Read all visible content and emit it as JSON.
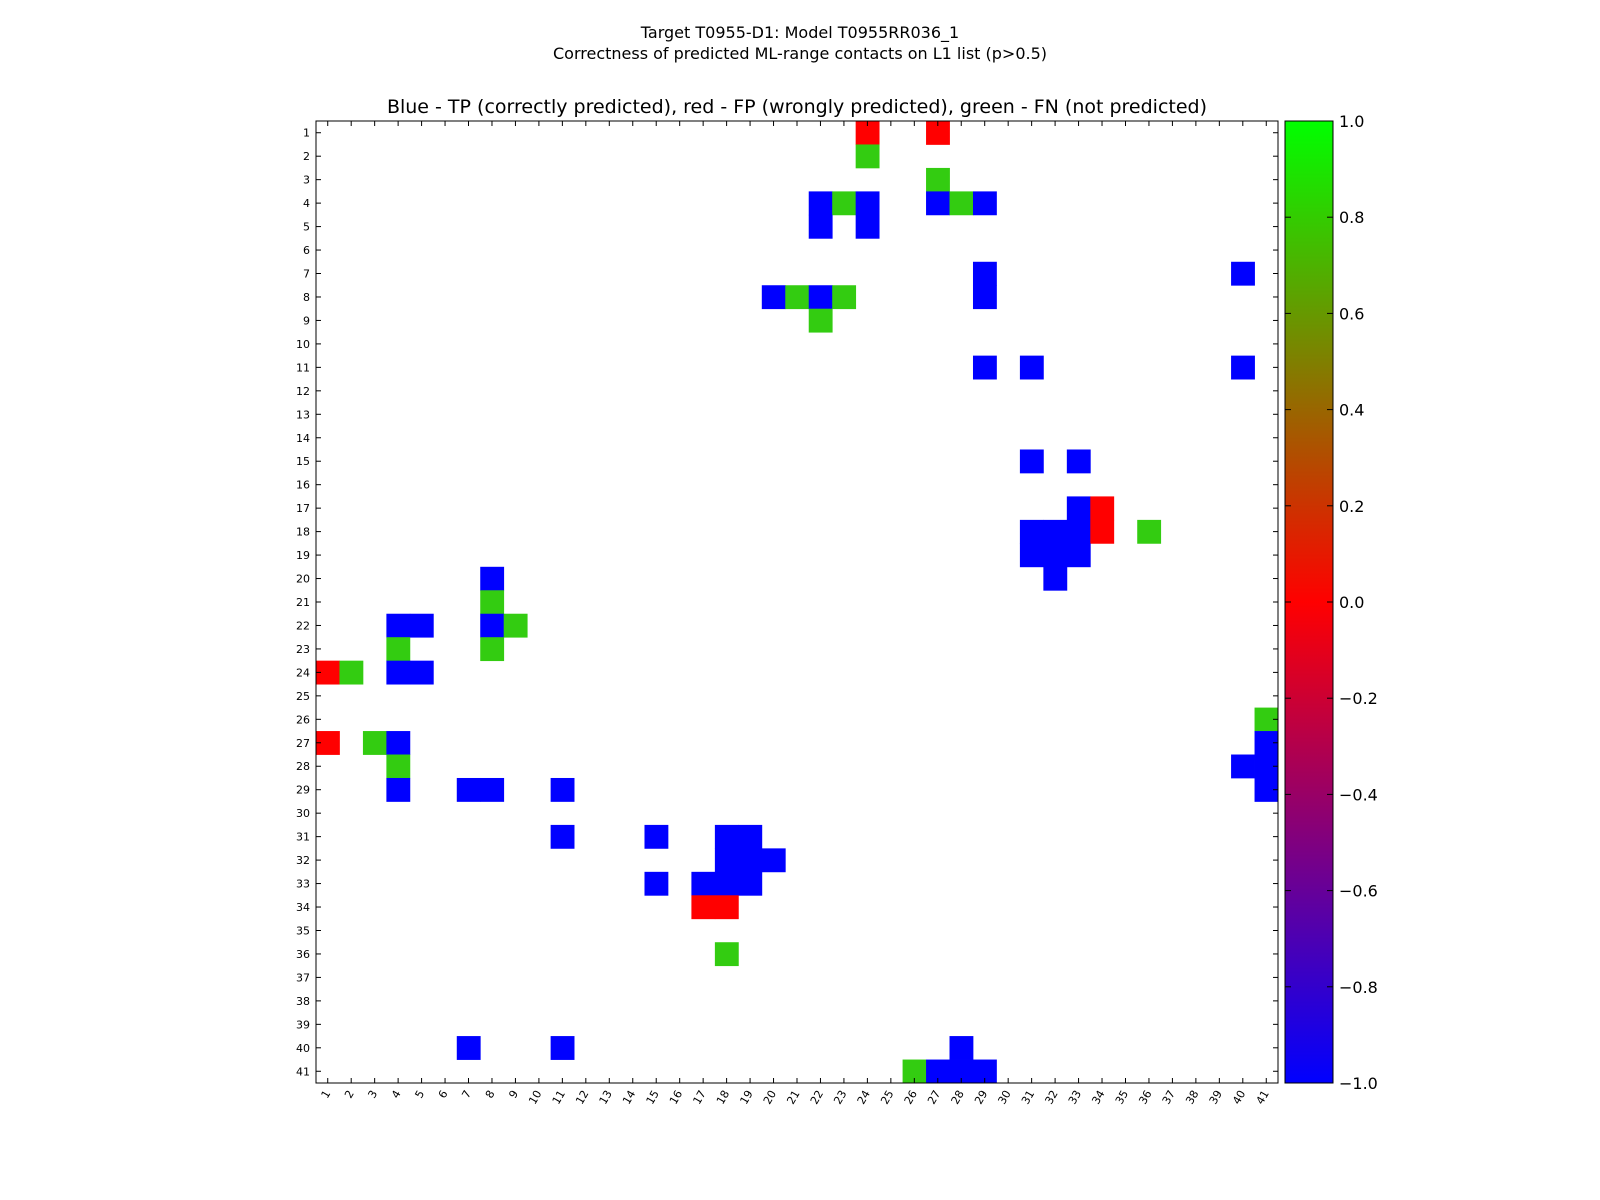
{
  "chart_data": {
    "type": "heatmap",
    "title": "Target T0955-D1: Model T0955RR036_1",
    "subtitle": "Correctness of predicted ML-range contacts on L1 list (p>0.5)",
    "axes_title": "Blue - TP (correctly predicted), red - FP (wrongly predicted), green - FN (not predicted)",
    "n": 41,
    "x_ticks": [
      "1",
      "2",
      "3",
      "4",
      "5",
      "6",
      "7",
      "8",
      "9",
      "10",
      "11",
      "12",
      "13",
      "14",
      "15",
      "16",
      "17",
      "18",
      "19",
      "20",
      "21",
      "22",
      "23",
      "24",
      "25",
      "26",
      "27",
      "28",
      "29",
      "30",
      "31",
      "32",
      "33",
      "34",
      "35",
      "36",
      "37",
      "38",
      "39",
      "40",
      "41"
    ],
    "y_ticks": [
      "1",
      "2",
      "3",
      "4",
      "5",
      "6",
      "7",
      "8",
      "9",
      "10",
      "11",
      "12",
      "13",
      "14",
      "15",
      "16",
      "17",
      "18",
      "19",
      "20",
      "21",
      "22",
      "23",
      "24",
      "25",
      "26",
      "27",
      "28",
      "29",
      "30",
      "31",
      "32",
      "33",
      "34",
      "35",
      "36",
      "37",
      "38",
      "39",
      "40",
      "41"
    ],
    "legend_values": {
      "TP": -1,
      "FP": 0,
      "FN": 1
    },
    "colorbar": {
      "range": [
        -1.0,
        1.0
      ],
      "ticks": [
        "1.0",
        "0.8",
        "0.6",
        "0.4",
        "0.2",
        "0.0",
        "−0.2",
        "−0.4",
        "−0.6",
        "−0.8",
        "−1.0"
      ],
      "tick_values": [
        1.0,
        0.8,
        0.6,
        0.4,
        0.2,
        0.0,
        -0.2,
        -0.4,
        -0.6,
        -0.8,
        -1.0
      ],
      "colors": {
        "low": "#0000ff",
        "mid": "#ff0000",
        "high": "#00ff00",
        "fn_cell": "#33cc11"
      }
    },
    "cells": [
      [
        1,
        24,
        0
      ],
      [
        1,
        27,
        0
      ],
      [
        2,
        24,
        1
      ],
      [
        3,
        27,
        1
      ],
      [
        4,
        22,
        -1
      ],
      [
        4,
        23,
        1
      ],
      [
        4,
        24,
        -1
      ],
      [
        4,
        27,
        -1
      ],
      [
        4,
        28,
        1
      ],
      [
        4,
        29,
        -1
      ],
      [
        5,
        22,
        -1
      ],
      [
        5,
        24,
        -1
      ],
      [
        7,
        29,
        -1
      ],
      [
        7,
        40,
        -1
      ],
      [
        8,
        20,
        -1
      ],
      [
        8,
        21,
        1
      ],
      [
        8,
        22,
        -1
      ],
      [
        8,
        23,
        1
      ],
      [
        8,
        29,
        -1
      ],
      [
        9,
        22,
        1
      ],
      [
        11,
        29,
        -1
      ],
      [
        11,
        31,
        -1
      ],
      [
        11,
        40,
        -1
      ],
      [
        15,
        31,
        -1
      ],
      [
        15,
        33,
        -1
      ],
      [
        17,
        33,
        -1
      ],
      [
        17,
        34,
        0
      ],
      [
        18,
        31,
        -1
      ],
      [
        18,
        32,
        -1
      ],
      [
        18,
        33,
        -1
      ],
      [
        18,
        34,
        0
      ],
      [
        18,
        36,
        1
      ],
      [
        19,
        31,
        -1
      ],
      [
        19,
        32,
        -1
      ],
      [
        19,
        33,
        -1
      ],
      [
        20,
        8,
        -1
      ],
      [
        20,
        32,
        -1
      ],
      [
        21,
        8,
        1
      ],
      [
        22,
        4,
        -1
      ],
      [
        22,
        5,
        -1
      ],
      [
        22,
        8,
        -1
      ],
      [
        22,
        9,
        1
      ],
      [
        23,
        4,
        1
      ],
      [
        23,
        8,
        1
      ],
      [
        24,
        1,
        0
      ],
      [
        24,
        2,
        1
      ],
      [
        24,
        4,
        -1
      ],
      [
        24,
        5,
        -1
      ],
      [
        26,
        41,
        1
      ],
      [
        27,
        1,
        0
      ],
      [
        27,
        3,
        1
      ],
      [
        27,
        4,
        -1
      ],
      [
        27,
        41,
        -1
      ],
      [
        28,
        4,
        1
      ],
      [
        28,
        40,
        -1
      ],
      [
        28,
        41,
        -1
      ],
      [
        29,
        4,
        -1
      ],
      [
        29,
        7,
        -1
      ],
      [
        29,
        8,
        -1
      ],
      [
        29,
        11,
        -1
      ],
      [
        29,
        41,
        -1
      ],
      [
        31,
        11,
        -1
      ],
      [
        31,
        15,
        -1
      ],
      [
        31,
        18,
        -1
      ],
      [
        31,
        19,
        -1
      ],
      [
        32,
        18,
        -1
      ],
      [
        32,
        19,
        -1
      ],
      [
        32,
        20,
        -1
      ],
      [
        33,
        15,
        -1
      ],
      [
        33,
        17,
        -1
      ],
      [
        33,
        18,
        -1
      ],
      [
        33,
        19,
        -1
      ],
      [
        34,
        17,
        0
      ],
      [
        34,
        18,
        0
      ],
      [
        36,
        18,
        1
      ],
      [
        40,
        7,
        -1
      ],
      [
        40,
        11,
        -1
      ],
      [
        40,
        28,
        -1
      ],
      [
        41,
        26,
        1
      ],
      [
        41,
        27,
        -1
      ],
      [
        41,
        28,
        -1
      ],
      [
        41,
        29,
        -1
      ]
    ]
  }
}
